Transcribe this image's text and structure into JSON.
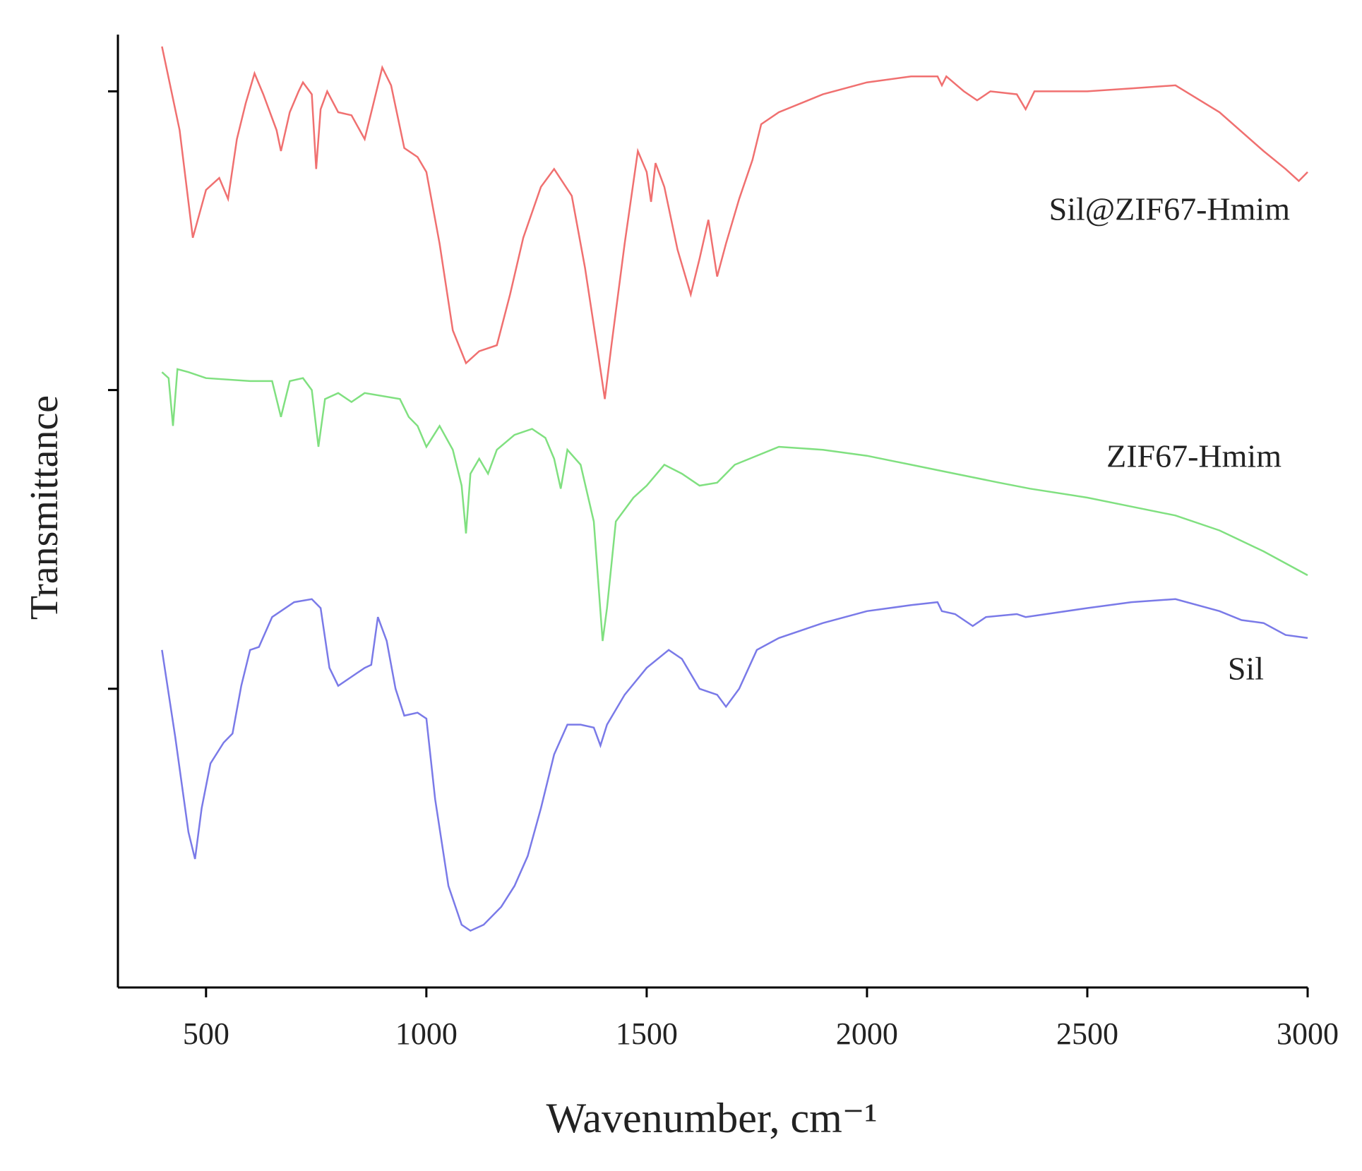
{
  "chart_data": {
    "type": "line",
    "xlabel": "Wavenumber, cm⁻¹",
    "ylabel": "Transmittance",
    "xlim": [
      300,
      3000
    ],
    "xticks": [
      500,
      1000,
      1500,
      2000,
      2500,
      3000
    ],
    "ylim": [
      0,
      3.19
    ],
    "yticks": [
      1,
      2,
      3
    ],
    "series": [
      {
        "name": "Sil@ZIF67-Hmim",
        "color": "#f07070",
        "x": [
          400,
          440,
          470,
          500,
          530,
          550,
          570,
          590,
          610,
          630,
          660,
          670,
          690,
          710,
          720,
          740,
          750,
          760,
          775,
          800,
          830,
          860,
          880,
          900,
          920,
          950,
          980,
          1000,
          1030,
          1060,
          1090,
          1120,
          1160,
          1190,
          1220,
          1260,
          1290,
          1330,
          1360,
          1390,
          1405,
          1420,
          1450,
          1480,
          1500,
          1510,
          1520,
          1540,
          1570,
          1600,
          1620,
          1640,
          1660,
          1680,
          1710,
          1740,
          1760,
          1800,
          1900,
          2000,
          2100,
          2160,
          2170,
          2180,
          2220,
          2250,
          2280,
          2340,
          2360,
          2380,
          2500,
          2600,
          2700,
          2800,
          2900,
          2950,
          2980,
          3000
        ],
        "values": [
          3.15,
          2.87,
          2.51,
          2.67,
          2.71,
          2.64,
          2.84,
          2.96,
          3.06,
          2.99,
          2.87,
          2.8,
          2.93,
          3.0,
          3.03,
          2.99,
          2.74,
          2.94,
          3.0,
          2.93,
          2.92,
          2.84,
          2.96,
          3.08,
          3.02,
          2.81,
          2.78,
          2.73,
          2.49,
          2.2,
          2.09,
          2.13,
          2.15,
          2.32,
          2.51,
          2.68,
          2.74,
          2.65,
          2.41,
          2.12,
          1.97,
          2.15,
          2.49,
          2.8,
          2.73,
          2.63,
          2.76,
          2.68,
          2.47,
          2.32,
          2.44,
          2.57,
          2.38,
          2.49,
          2.64,
          2.77,
          2.89,
          2.93,
          2.99,
          3.03,
          3.05,
          3.05,
          3.02,
          3.05,
          3.0,
          2.97,
          3.0,
          2.99,
          2.94,
          3.0,
          3.0,
          3.01,
          3.02,
          2.93,
          2.8,
          2.74,
          2.7,
          2.73
        ]
      },
      {
        "name": "ZIF67-Hmim",
        "color": "#80e080",
        "x": [
          400,
          415,
          425,
          435,
          460,
          500,
          600,
          650,
          670,
          690,
          720,
          740,
          755,
          770,
          800,
          830,
          860,
          940,
          960,
          980,
          1000,
          1030,
          1060,
          1080,
          1090,
          1100,
          1120,
          1140,
          1160,
          1200,
          1240,
          1270,
          1290,
          1305,
          1320,
          1350,
          1380,
          1400,
          1410,
          1430,
          1470,
          1500,
          1540,
          1580,
          1620,
          1660,
          1700,
          1800,
          1900,
          2000,
          2100,
          2200,
          2300,
          2370,
          2500,
          2600,
          2700,
          2800,
          2900,
          3000
        ],
        "values": [
          2.06,
          2.04,
          1.88,
          2.07,
          2.06,
          2.04,
          2.03,
          2.03,
          1.91,
          2.03,
          2.04,
          2.0,
          1.81,
          1.97,
          1.99,
          1.96,
          1.99,
          1.97,
          1.91,
          1.88,
          1.81,
          1.88,
          1.8,
          1.68,
          1.52,
          1.72,
          1.77,
          1.72,
          1.8,
          1.85,
          1.87,
          1.84,
          1.77,
          1.67,
          1.8,
          1.75,
          1.56,
          1.16,
          1.27,
          1.56,
          1.64,
          1.68,
          1.75,
          1.72,
          1.68,
          1.69,
          1.75,
          1.81,
          1.8,
          1.78,
          1.75,
          1.72,
          1.69,
          1.67,
          1.64,
          1.61,
          1.58,
          1.53,
          1.46,
          1.38
        ]
      },
      {
        "name": "Sil",
        "color": "#7a7ae8",
        "x": [
          400,
          430,
          460,
          475,
          490,
          510,
          540,
          560,
          580,
          600,
          620,
          650,
          700,
          740,
          760,
          780,
          800,
          830,
          860,
          875,
          890,
          910,
          930,
          950,
          980,
          1000,
          1020,
          1050,
          1080,
          1100,
          1130,
          1170,
          1200,
          1230,
          1260,
          1290,
          1320,
          1350,
          1380,
          1395,
          1410,
          1450,
          1500,
          1550,
          1580,
          1620,
          1660,
          1680,
          1710,
          1750,
          1800,
          1900,
          2000,
          2100,
          2160,
          2170,
          2200,
          2240,
          2270,
          2340,
          2360,
          2500,
          2600,
          2700,
          2800,
          2850,
          2900,
          2950,
          3000
        ],
        "values": [
          1.13,
          0.84,
          0.52,
          0.43,
          0.6,
          0.75,
          0.82,
          0.85,
          1.01,
          1.13,
          1.14,
          1.24,
          1.29,
          1.3,
          1.27,
          1.07,
          1.01,
          1.04,
          1.07,
          1.08,
          1.24,
          1.16,
          1.0,
          0.91,
          0.92,
          0.9,
          0.63,
          0.34,
          0.21,
          0.19,
          0.21,
          0.27,
          0.34,
          0.44,
          0.6,
          0.78,
          0.88,
          0.88,
          0.87,
          0.81,
          0.88,
          0.98,
          1.07,
          1.13,
          1.1,
          1.0,
          0.98,
          0.94,
          1.0,
          1.13,
          1.17,
          1.22,
          1.26,
          1.28,
          1.29,
          1.26,
          1.25,
          1.21,
          1.24,
          1.25,
          1.24,
          1.27,
          1.29,
          1.3,
          1.26,
          1.23,
          1.22,
          1.18,
          1.17
        ]
      }
    ]
  }
}
